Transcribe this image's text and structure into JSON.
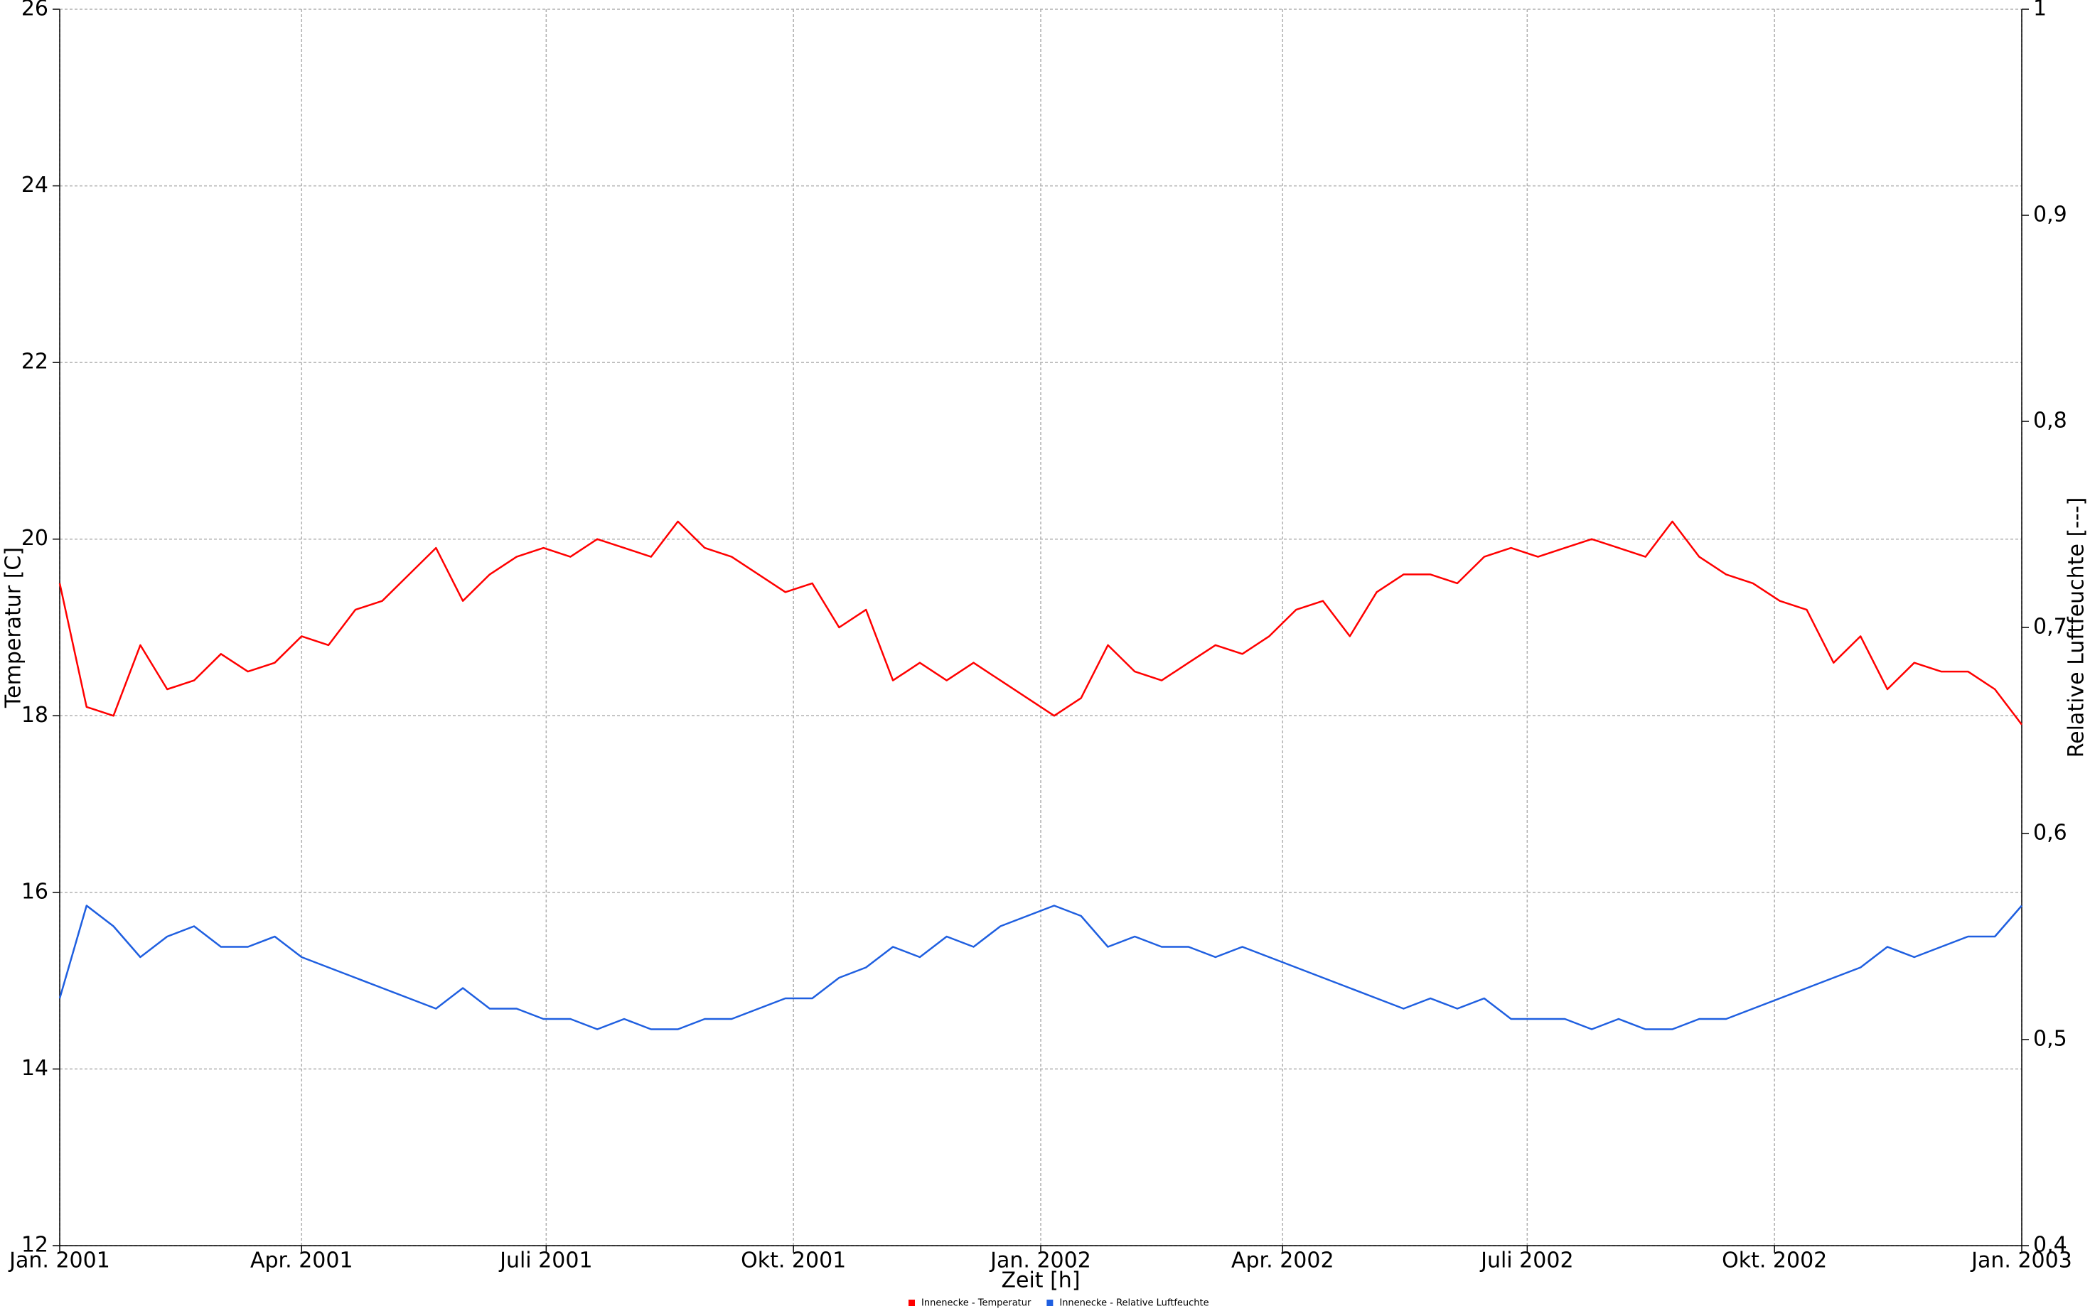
{
  "chart_data": {
    "type": "line",
    "xlabel": "Zeit [h]",
    "ylabel": "Temperatur [C]",
    "y2label": "Relative Luftfeuchte [---]",
    "xlim": [
      0,
      17520
    ],
    "xticks": [
      {
        "value": 0,
        "label": "Jan. 2001"
      },
      {
        "value": 2160,
        "label": "Apr. 2001"
      },
      {
        "value": 4344,
        "label": "Juli 2001"
      },
      {
        "value": 6552,
        "label": "Okt. 2001"
      },
      {
        "value": 8760,
        "label": "Jan. 2002"
      },
      {
        "value": 10920,
        "label": "Apr. 2002"
      },
      {
        "value": 13104,
        "label": "Juli 2002"
      },
      {
        "value": 15312,
        "label": "Okt. 2002"
      },
      {
        "value": 17520,
        "label": "Jan. 2003"
      }
    ],
    "ylim": [
      12,
      26
    ],
    "yticks": [
      12,
      14,
      16,
      18,
      20,
      22,
      24,
      26
    ],
    "y2lim": [
      0.4,
      1
    ],
    "y2ticks": [
      {
        "value": 0.4,
        "label": "0,4"
      },
      {
        "value": 0.5,
        "label": "0,5"
      },
      {
        "value": 0.6,
        "label": "0,6"
      },
      {
        "value": 0.7,
        "label": "0,7"
      },
      {
        "value": 0.8,
        "label": "0,8"
      },
      {
        "value": 0.9,
        "label": "0,9"
      },
      1
    ],
    "grid": true,
    "legend": "bottom",
    "x": [
      0,
      240,
      480,
      720,
      960,
      1200,
      1440,
      1680,
      1920,
      2160,
      2400,
      2640,
      2880,
      3120,
      3360,
      3600,
      3840,
      4080,
      4320,
      4560,
      4800,
      5040,
      5280,
      5520,
      5760,
      6000,
      6240,
      6480,
      6720,
      6960,
      7200,
      7440,
      7680,
      7920,
      8160,
      8400,
      8640,
      8880,
      9120,
      9360,
      9600,
      9840,
      10080,
      10320,
      10560,
      10800,
      11040,
      11280,
      11520,
      11760,
      12000,
      12240,
      12480,
      12720,
      12960,
      13200,
      13440,
      13680,
      13920,
      14160,
      14400,
      14640,
      14880,
      15120,
      15360,
      15600,
      15840,
      16080,
      16320,
      16560,
      16800,
      17040,
      17280,
      17520
    ],
    "series": [
      {
        "name": "Innenecke - Temperatur",
        "color": "#ff0000",
        "values": [
          19.5,
          18.1,
          18.0,
          18.8,
          18.3,
          18.4,
          18.7,
          18.5,
          18.6,
          18.9,
          18.8,
          19.2,
          19.3,
          19.6,
          19.9,
          19.3,
          19.6,
          19.8,
          19.9,
          19.8,
          20.0,
          19.9,
          19.8,
          20.2,
          19.9,
          19.8,
          19.6,
          19.4,
          19.5,
          19.0,
          19.2,
          18.4,
          18.6,
          18.4,
          18.6,
          18.4,
          18.2,
          18.0,
          18.2,
          18.8,
          18.5,
          18.4,
          18.6,
          18.8,
          18.7,
          18.9,
          19.2,
          19.3,
          18.9,
          19.4,
          19.6,
          19.6,
          19.5,
          19.8,
          19.9,
          19.8,
          19.9,
          20.0,
          19.9,
          19.8,
          20.2,
          19.8,
          19.6,
          19.5,
          19.3,
          19.2,
          18.6,
          18.9,
          18.3,
          18.6,
          18.5,
          18.5,
          18.3,
          17.9
        ]
      },
      {
        "name": "Innenecke - Relative Luftfeuchte",
        "color": "#1f5fe0",
        "axis": "y2",
        "values": [
          0.52,
          0.565,
          0.555,
          0.54,
          0.55,
          0.555,
          0.545,
          0.545,
          0.55,
          0.54,
          0.535,
          0.53,
          0.525,
          0.52,
          0.515,
          0.525,
          0.515,
          0.515,
          0.51,
          0.51,
          0.505,
          0.51,
          0.505,
          0.505,
          0.51,
          0.51,
          0.515,
          0.52,
          0.52,
          0.53,
          0.535,
          0.545,
          0.54,
          0.55,
          0.545,
          0.555,
          0.56,
          0.565,
          0.56,
          0.545,
          0.55,
          0.545,
          0.545,
          0.54,
          0.545,
          0.54,
          0.535,
          0.53,
          0.525,
          0.52,
          0.515,
          0.52,
          0.515,
          0.52,
          0.51,
          0.51,
          0.51,
          0.505,
          0.51,
          0.505,
          0.505,
          0.51,
          0.51,
          0.515,
          0.52,
          0.525,
          0.53,
          0.535,
          0.545,
          0.54,
          0.545,
          0.55,
          0.55,
          0.565
        ]
      }
    ]
  }
}
